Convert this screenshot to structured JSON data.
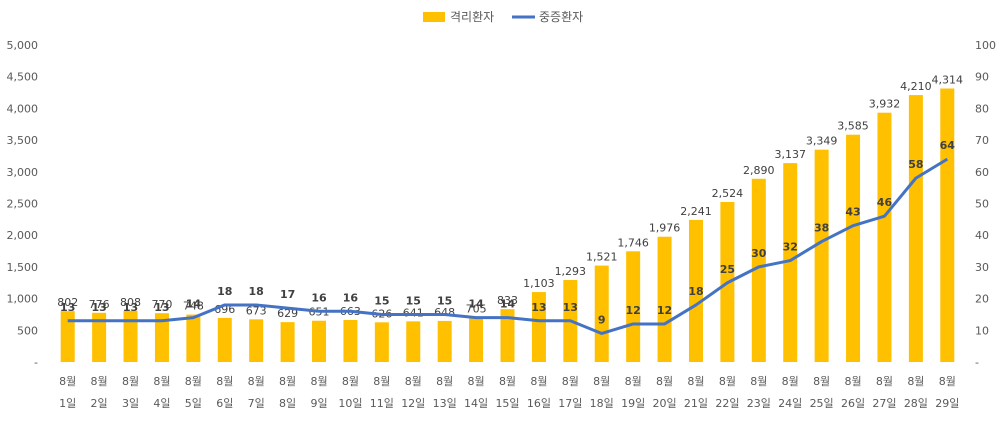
{
  "chart_data": {
    "type": "bar+line",
    "categories": [
      [
        "8월",
        "1일"
      ],
      [
        "8월",
        "2일"
      ],
      [
        "8월",
        "3일"
      ],
      [
        "8월",
        "4일"
      ],
      [
        "8월",
        "5일"
      ],
      [
        "8월",
        "6일"
      ],
      [
        "8월",
        "7일"
      ],
      [
        "8월",
        "8일"
      ],
      [
        "8월",
        "9일"
      ],
      [
        "8월",
        "10일"
      ],
      [
        "8월",
        "11일"
      ],
      [
        "8월",
        "12일"
      ],
      [
        "8월",
        "13일"
      ],
      [
        "8월",
        "14일"
      ],
      [
        "8월",
        "15일"
      ],
      [
        "8월",
        "16일"
      ],
      [
        "8월",
        "17일"
      ],
      [
        "8월",
        "18일"
      ],
      [
        "8월",
        "19일"
      ],
      [
        "8월",
        "20일"
      ],
      [
        "8월",
        "21일"
      ],
      [
        "8월",
        "22일"
      ],
      [
        "8월",
        "23일"
      ],
      [
        "8월",
        "24일"
      ],
      [
        "8월",
        "25일"
      ],
      [
        "8월",
        "26일"
      ],
      [
        "8월",
        "27일"
      ],
      [
        "8월",
        "28일"
      ],
      [
        "8월",
        "29일"
      ]
    ],
    "series": [
      {
        "name": "격리환자",
        "type": "bar",
        "axis": "left",
        "color": "#FFC000",
        "values": [
          802,
          776,
          808,
          770,
          748,
          696,
          673,
          629,
          651,
          663,
          626,
          641,
          648,
          705,
          833,
          1103,
          1293,
          1521,
          1746,
          1976,
          2241,
          2524,
          2890,
          3137,
          3349,
          3585,
          3932,
          4210,
          4314
        ],
        "labels": [
          "802",
          "776",
          "808",
          "770",
          "748",
          "696",
          "673",
          "629",
          "651",
          "663",
          "626",
          "641",
          "648",
          "705",
          "833",
          "1,103",
          "1,293",
          "1,521",
          "1,746",
          "1,976",
          "2,241",
          "2,524",
          "2,890",
          "3,137",
          "3,349",
          "3,585",
          "3,932",
          "4,210",
          "4,314"
        ]
      },
      {
        "name": "중증환자",
        "type": "line",
        "axis": "right",
        "color": "#4472C4",
        "values": [
          13,
          13,
          13,
          13,
          14,
          18,
          18,
          17,
          16,
          16,
          15,
          15,
          15,
          14,
          14,
          13,
          13,
          9,
          12,
          12,
          18,
          25,
          30,
          32,
          38,
          43,
          46,
          58,
          64
        ],
        "labels": [
          "13",
          "13",
          "13",
          "13",
          "14",
          "18",
          "18",
          "17",
          "16",
          "16",
          "15",
          "15",
          "15",
          "14",
          "14",
          "13",
          "13",
          "9",
          "12",
          "12",
          "18",
          "25",
          "30",
          "32",
          "38",
          "43",
          "46",
          "58",
          "64"
        ]
      }
    ],
    "y_left": {
      "range": [
        0,
        5000
      ],
      "ticks": [
        0,
        500,
        1000,
        1500,
        2000,
        2500,
        3000,
        3500,
        4000,
        4500,
        5000
      ],
      "tick_labels": [
        "-",
        "500",
        "1,000",
        "1,500",
        "2,000",
        "2,500",
        "3,000",
        "3,500",
        "4,000",
        "4,500",
        "5,000"
      ]
    },
    "y_right": {
      "range": [
        0,
        100
      ],
      "ticks": [
        0,
        10,
        20,
        30,
        40,
        50,
        60,
        70,
        80,
        90,
        100
      ],
      "tick_labels": [
        "-",
        "10",
        "20",
        "30",
        "40",
        "50",
        "60",
        "70",
        "80",
        "90",
        "100"
      ]
    },
    "legend": {
      "placement": "top-center",
      "items": [
        {
          "label": "격리환자",
          "shape": "box",
          "color": "#FFC000"
        },
        {
          "label": "중증환자",
          "shape": "line",
          "color": "#4472C4"
        }
      ]
    },
    "grid": false
  }
}
